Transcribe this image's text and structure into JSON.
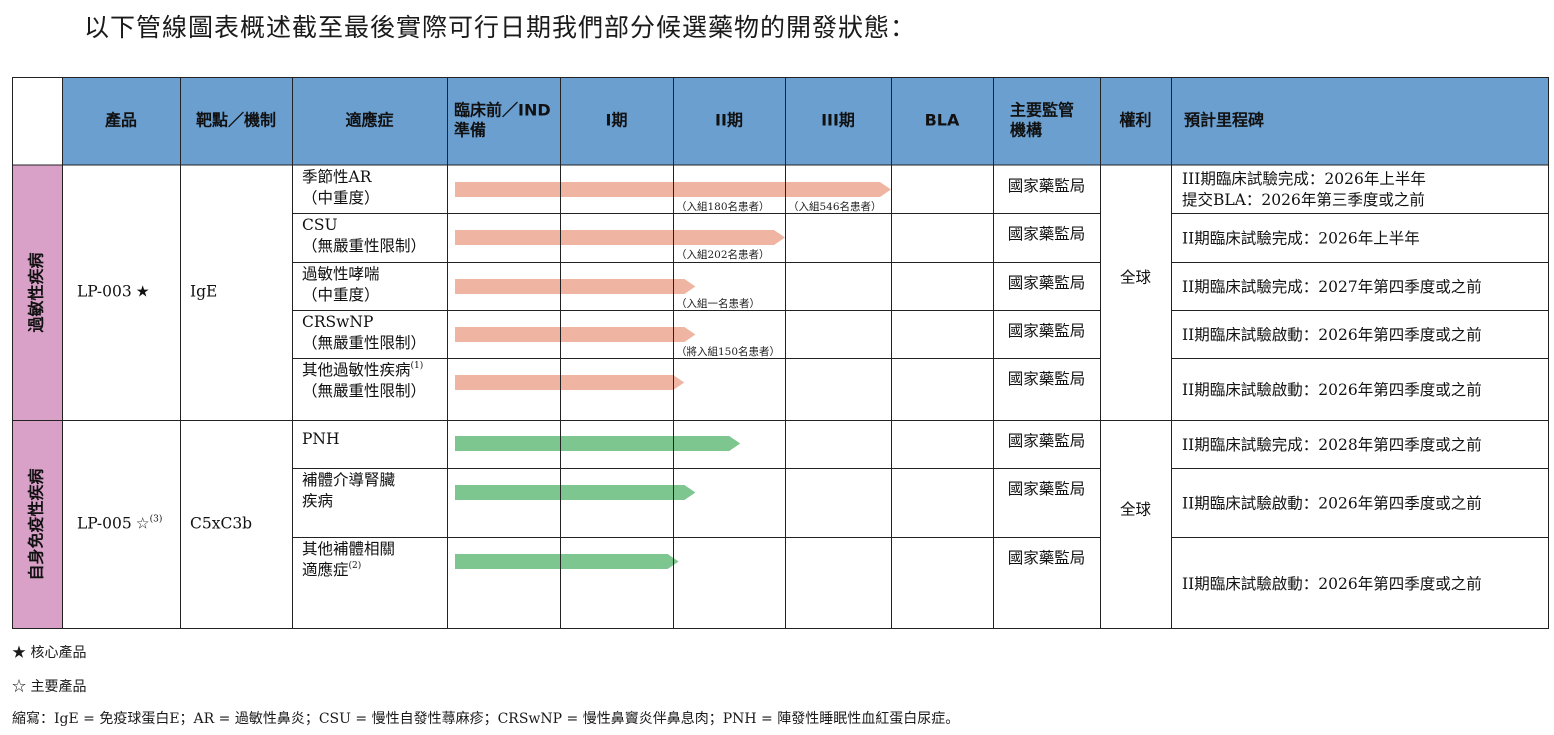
{
  "title": "以下管線圖表概述截至最後實際可行日期我們部分候選藥物的開發狀態：",
  "headers": {
    "product": "產品",
    "target": "靶點／機制",
    "indication": "適應症",
    "preclinical_line1": "臨床前／IND",
    "preclinical_line2": "準備",
    "phase1": "I期",
    "phase2": "II期",
    "phase3": "III期",
    "bla": "BLA",
    "regulator_line1": "主要監管",
    "regulator_line2": "機構",
    "rights": "權利",
    "milestone": "預計里程碑"
  },
  "colors": {
    "header_bg": "#6a9fd0",
    "category_bg": "#d9a1c8",
    "bar_allergy": "#efb5a2",
    "bar_autoimmune": "#7dc690"
  },
  "groups": [
    {
      "category": "過敏性疾病",
      "product": "LP-003",
      "product_mark": "★",
      "target": "IgE",
      "rights": "全球",
      "rows": [
        {
          "indication_line1": "季節性AR",
          "indication_line2": "（中重度）",
          "progress": 4.0,
          "notes": [
            "（入組180名患者）",
            "（入組546名患者）"
          ],
          "regulator": "國家藥監局",
          "milestone_line1": "III期臨床試驗完成：2026年上半年",
          "milestone_line2": "提交BLA：2026年第三季度或之前"
        },
        {
          "indication_line1": "CSU",
          "indication_line2": "（無嚴重性限制）",
          "progress": 3.0,
          "notes": [
            "（入組202名患者）"
          ],
          "regulator": "國家藥監局",
          "milestone_line1": "II期臨床試驗完成：2026年上半年"
        },
        {
          "indication_line1": "過敏性哮喘",
          "indication_line2": "（中重度）",
          "progress": 2.2,
          "notes": [
            "（入組一名患者）"
          ],
          "regulator": "國家藥監局",
          "milestone_line1": "II期臨床試驗完成：2027年第四季度或之前"
        },
        {
          "indication_line1": "CRSwNP",
          "indication_line2": "（無嚴重性限制）",
          "progress": 2.2,
          "notes": [
            "（將入組150名患者）"
          ],
          "regulator": "國家藥監局",
          "milestone_line1": "II期臨床試驗啟動：2026年第四季度或之前"
        },
        {
          "indication_line1": "其他過敏性疾病",
          "indication_sup": "(1)",
          "indication_line2": "（無嚴重性限制）",
          "progress": 2.1,
          "notes": [],
          "regulator": "國家藥監局",
          "milestone_line1": "II期臨床試驗啟動：2026年第四季度或之前"
        }
      ]
    },
    {
      "category": "自身免疫性疾病",
      "product": "LP-005",
      "product_mark": "☆",
      "product_sup": "(3)",
      "target": "C5xC3b",
      "rights": "全球",
      "rows": [
        {
          "indication_line1": "PNH",
          "progress": 2.6,
          "notes": [],
          "regulator": "國家藥監局",
          "milestone_line1": "II期臨床試驗完成：2028年第四季度或之前"
        },
        {
          "indication_line1": "補體介導腎臟",
          "indication_line2": "疾病",
          "progress": 2.2,
          "notes": [],
          "regulator": "國家藥監局",
          "milestone_line1": "II期臨床試驗啟動：2026年第四季度或之前"
        },
        {
          "indication_line1": "其他補體相關",
          "indication_line2": "適應症",
          "indication_sup": "(2)",
          "progress": 2.05,
          "notes": [],
          "regulator": "國家藥監局",
          "milestone_line1": "II期臨床試驗啟動：2026年第四季度或之前"
        }
      ]
    }
  ],
  "footer": {
    "core_product": "★ 核心產品",
    "key_product": "☆ 主要產品",
    "abbreviations": "縮寫：IgE = 免疫球蛋白E；AR = 過敏性鼻炎；CSU = 慢性自發性蕁麻疹；CRSwNP = 慢性鼻竇炎伴鼻息肉；PNH = 陣發性睡眠性血紅蛋白尿症。"
  }
}
